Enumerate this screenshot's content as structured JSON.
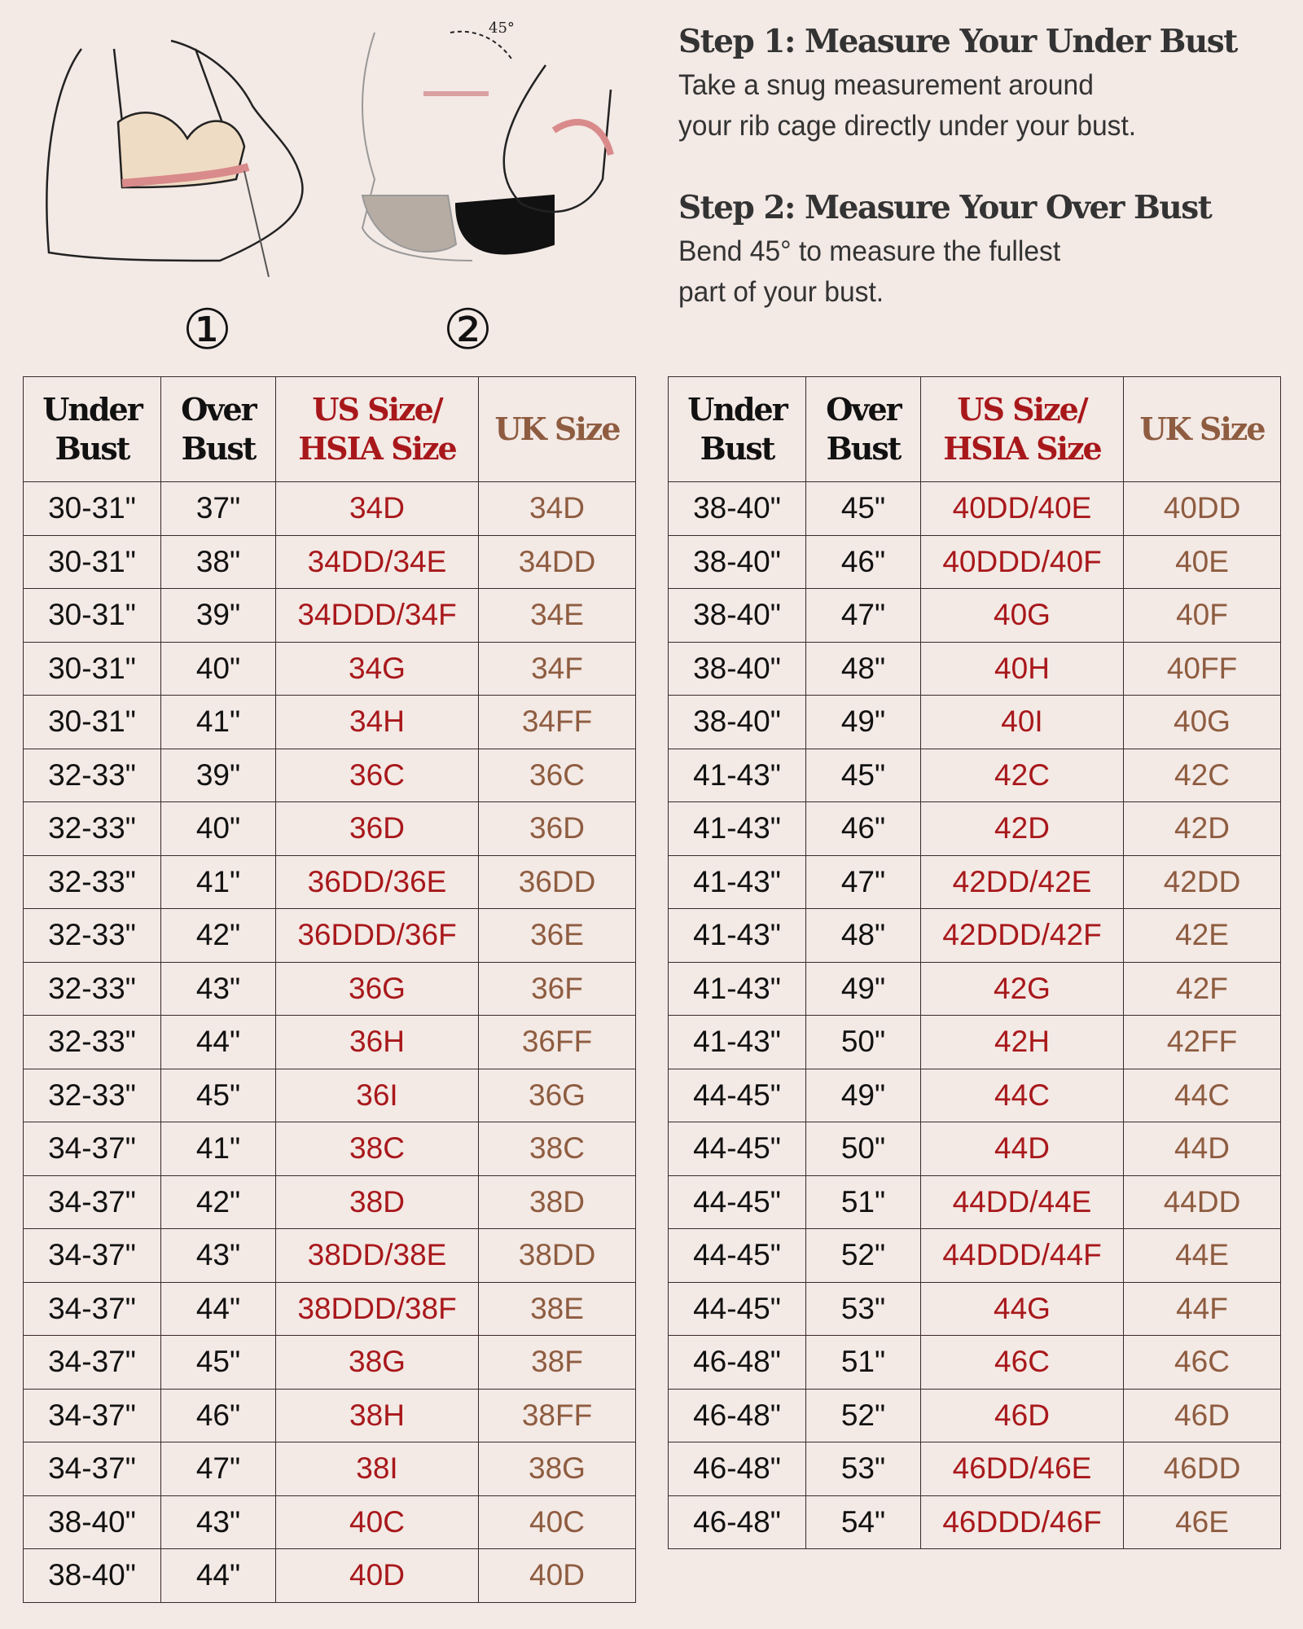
{
  "steps": [
    {
      "title": "Step 1: Measure Your Under Bust",
      "body": "Take a snug measurement around\nyour rib cage directly under your bust."
    },
    {
      "title": "Step 2: Measure Your Over Bust",
      "body": "Bend 45° to measure the fullest\npart of your bust."
    }
  ],
  "illustration": {
    "step1_number": "①",
    "step2_number": "②",
    "angle_label": "45°"
  },
  "colors": {
    "background": "#f3e9e5",
    "us_size": "#a8181b",
    "uk_size": "#8e5c40",
    "text": "#111111"
  },
  "headers": {
    "under": "Under\nBust",
    "over": "Over\nBust",
    "us": "US Size/\nHSIA Size",
    "uk": "UK Size"
  },
  "left_table": [
    [
      "30-31\"",
      "37\"",
      "34D",
      "34D"
    ],
    [
      "30-31\"",
      "38\"",
      "34DD/34E",
      "34DD"
    ],
    [
      "30-31\"",
      "39\"",
      "34DDD/34F",
      "34E"
    ],
    [
      "30-31\"",
      "40\"",
      "34G",
      "34F"
    ],
    [
      "30-31\"",
      "41\"",
      "34H",
      "34FF"
    ],
    [
      "32-33\"",
      "39\"",
      "36C",
      "36C"
    ],
    [
      "32-33\"",
      "40\"",
      "36D",
      "36D"
    ],
    [
      "32-33\"",
      "41\"",
      "36DD/36E",
      "36DD"
    ],
    [
      "32-33\"",
      "42\"",
      "36DDD/36F",
      "36E"
    ],
    [
      "32-33\"",
      "43\"",
      "36G",
      "36F"
    ],
    [
      "32-33\"",
      "44\"",
      "36H",
      "36FF"
    ],
    [
      "32-33\"",
      "45\"",
      "36I",
      "36G"
    ],
    [
      "34-37\"",
      "41\"",
      "38C",
      "38C"
    ],
    [
      "34-37\"",
      "42\"",
      "38D",
      "38D"
    ],
    [
      "34-37\"",
      "43\"",
      "38DD/38E",
      "38DD"
    ],
    [
      "34-37\"",
      "44\"",
      "38DDD/38F",
      "38E"
    ],
    [
      "34-37\"",
      "45\"",
      "38G",
      "38F"
    ],
    [
      "34-37\"",
      "46\"",
      "38H",
      "38FF"
    ],
    [
      "34-37\"",
      "47\"",
      "38I",
      "38G"
    ],
    [
      "38-40\"",
      "43\"",
      "40C",
      "40C"
    ],
    [
      "38-40\"",
      "44\"",
      "40D",
      "40D"
    ]
  ],
  "right_table": [
    [
      "38-40\"",
      "45\"",
      "40DD/40E",
      "40DD"
    ],
    [
      "38-40\"",
      "46\"",
      "40DDD/40F",
      "40E"
    ],
    [
      "38-40\"",
      "47\"",
      "40G",
      "40F"
    ],
    [
      "38-40\"",
      "48\"",
      "40H",
      "40FF"
    ],
    [
      "38-40\"",
      "49\"",
      "40I",
      "40G"
    ],
    [
      "41-43\"",
      "45\"",
      "42C",
      "42C"
    ],
    [
      "41-43\"",
      "46\"",
      "42D",
      "42D"
    ],
    [
      "41-43\"",
      "47\"",
      "42DD/42E",
      "42DD"
    ],
    [
      "41-43\"",
      "48\"",
      "42DDD/42F",
      "42E"
    ],
    [
      "41-43\"",
      "49\"",
      "42G",
      "42F"
    ],
    [
      "41-43\"",
      "50\"",
      "42H",
      "42FF"
    ],
    [
      "44-45\"",
      "49\"",
      "44C",
      "44C"
    ],
    [
      "44-45\"",
      "50\"",
      "44D",
      "44D"
    ],
    [
      "44-45\"",
      "51\"",
      "44DD/44E",
      "44DD"
    ],
    [
      "44-45\"",
      "52\"",
      "44DDD/44F",
      "44E"
    ],
    [
      "44-45\"",
      "53\"",
      "44G",
      "44F"
    ],
    [
      "46-48\"",
      "51\"",
      "46C",
      "46C"
    ],
    [
      "46-48\"",
      "52\"",
      "46D",
      "46D"
    ],
    [
      "46-48\"",
      "53\"",
      "46DD/46E",
      "46DD"
    ],
    [
      "46-48\"",
      "54\"",
      "46DDD/46F",
      "46E"
    ]
  ]
}
